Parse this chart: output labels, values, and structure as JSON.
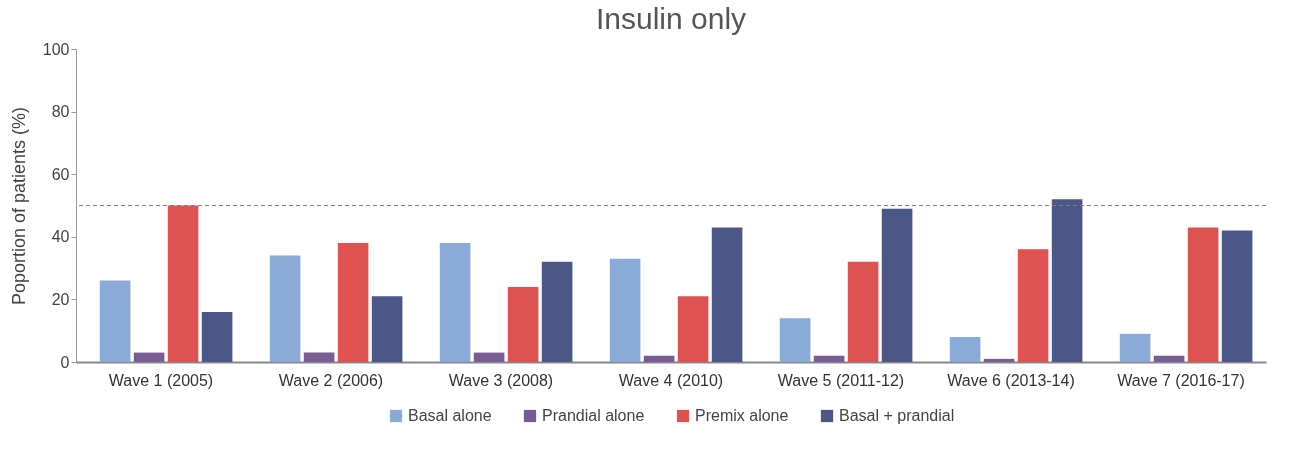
{
  "chart_data": {
    "type": "bar",
    "title": "Insulin only",
    "ylabel": "Poportion of patients (%)",
    "categories": [
      "Wave 1 (2005)",
      "Wave 2 (2006)",
      "Wave 3 (2008)",
      "Wave 4 (2010)",
      "Wave 5 (2011-12)",
      "Wave 6 (2013-14)",
      "Wave 7 (2016-17)"
    ],
    "series": [
      {
        "name": "Basal alone",
        "color": "#8aaad8",
        "values": [
          26,
          34,
          38,
          33,
          14,
          8,
          9
        ]
      },
      {
        "name": "Prandial alone",
        "color": "#7a5c94",
        "values": [
          3,
          3,
          3,
          2,
          2,
          1,
          2
        ]
      },
      {
        "name": "Premix alone",
        "color": "#de5252",
        "values": [
          50,
          38,
          24,
          21,
          32,
          36,
          43
        ]
      },
      {
        "name": "Basal + prandial",
        "color": "#4a5787",
        "values": [
          16,
          21,
          32,
          43,
          49,
          52,
          42
        ]
      }
    ],
    "ylim": [
      0,
      100
    ],
    "yticks": [
      0,
      20,
      40,
      60,
      80,
      100
    ],
    "grid": false,
    "legend": "bottom",
    "ref_lines": [
      {
        "axis": "y",
        "value": 50,
        "color": "#808080",
        "line_style": "dashed"
      }
    ]
  }
}
